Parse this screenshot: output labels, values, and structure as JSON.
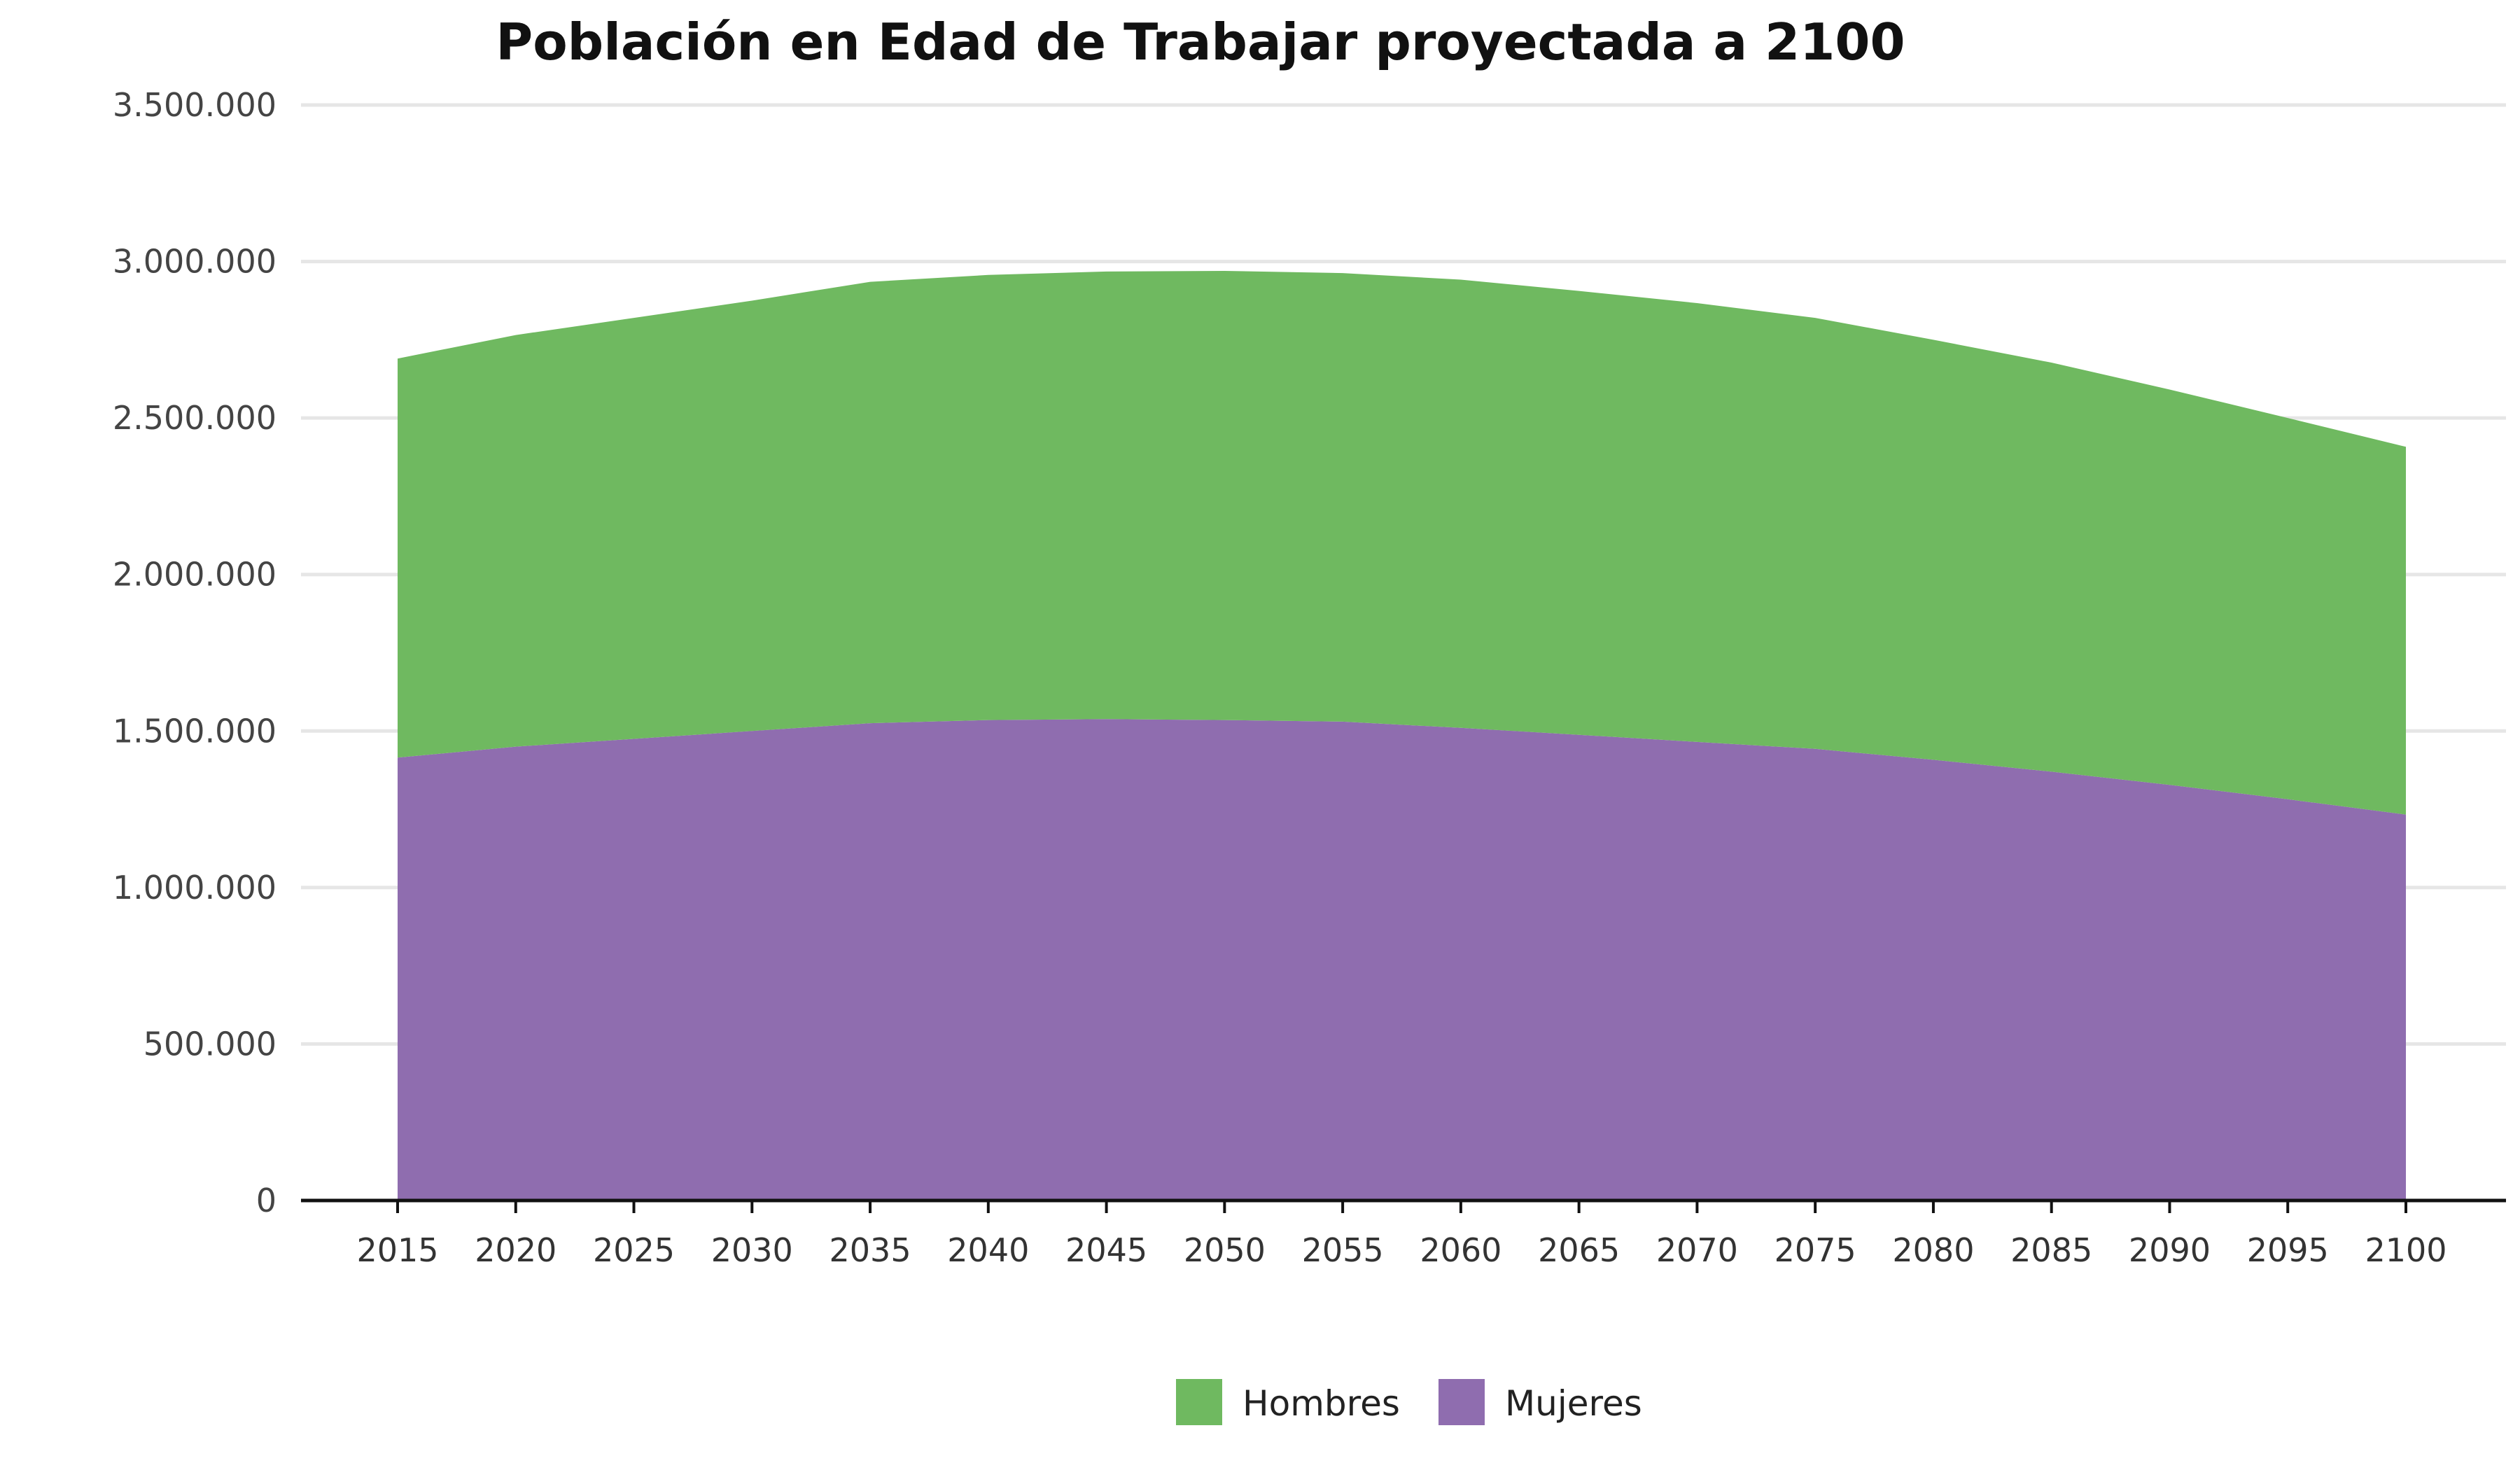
{
  "chart_data": {
    "type": "area",
    "stacked": true,
    "title": "Población en Edad de Trabajar proyectada a 2100",
    "xlabel": "",
    "ylabel": "",
    "x": [
      2015,
      2020,
      2025,
      2030,
      2035,
      2040,
      2045,
      2050,
      2055,
      2060,
      2065,
      2070,
      2075,
      2080,
      2085,
      2090,
      2095,
      2100
    ],
    "x_tick_labels": [
      "2015",
      "2020",
      "2025",
      "2030",
      "2035",
      "2040",
      "2045",
      "2050",
      "2055",
      "2060",
      "2065",
      "2070",
      "2075",
      "2080",
      "2085",
      "2090",
      "2095",
      "2100"
    ],
    "ylim": [
      0,
      3500000
    ],
    "y_ticks": [
      0,
      500000,
      1000000,
      1500000,
      2000000,
      2500000,
      3000000,
      3500000
    ],
    "y_tick_labels": [
      "0",
      "500.000",
      "1.000.000",
      "1.500.000",
      "2.000.000",
      "2.500.000",
      "3.000.000",
      "3.500.000"
    ],
    "grid": true,
    "legend_position": "bottom",
    "series": [
      {
        "name": "Mujeres",
        "color": "#8f6daf",
        "values": [
          1415000,
          1450000,
          1475000,
          1500000,
          1525000,
          1535000,
          1538000,
          1535000,
          1530000,
          1510000,
          1488000,
          1465000,
          1443000,
          1408000,
          1370000,
          1328000,
          1282000,
          1233000
        ]
      },
      {
        "name": "Hombres",
        "color": "#6fb960",
        "values": [
          1275000,
          1315000,
          1345000,
          1375000,
          1410000,
          1422000,
          1430000,
          1435000,
          1433000,
          1432000,
          1418000,
          1402000,
          1377000,
          1342000,
          1307000,
          1263000,
          1218000,
          1175000
        ]
      }
    ],
    "legend": [
      {
        "label": "Hombres",
        "color": "#6fb960"
      },
      {
        "label": "Mujeres",
        "color": "#8f6daf"
      }
    ]
  }
}
